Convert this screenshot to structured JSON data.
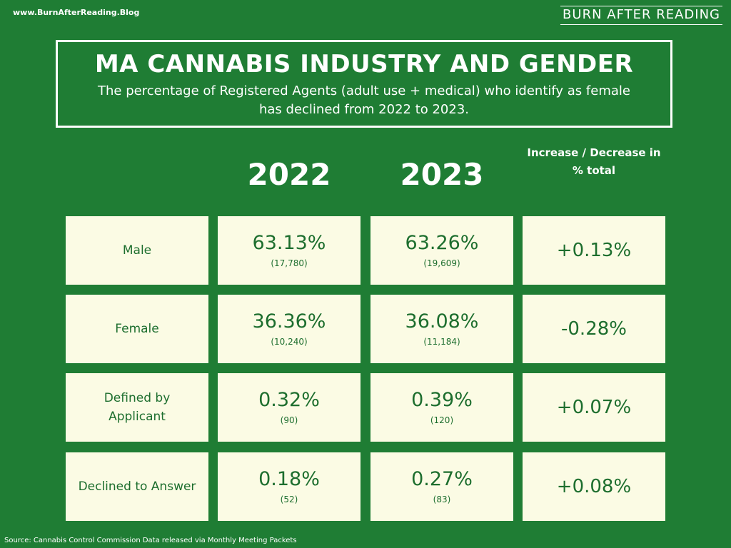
{
  "site_url": "www.BurnAfterReading.Blog",
  "brand": "BURN AFTER READING",
  "title": "MA CANNABIS INDUSTRY AND GENDER",
  "subtitle": "The percentage of Registered Agents (adult use + medical) who identify as female has declined from 2022 to 2023.",
  "columns": {
    "year1": "2022",
    "year2": "2023",
    "change": "Increase / Decrease in % total"
  },
  "rows": [
    {
      "label": "Male",
      "pct_2022": "63.13%",
      "count_2022": "(17,780)",
      "pct_2023": "63.26%",
      "count_2023": "(19,609)",
      "change": "+0.13%"
    },
    {
      "label": "Female",
      "pct_2022": "36.36%",
      "count_2022": "(10,240)",
      "pct_2023": "36.08%",
      "count_2023": "(11,184)",
      "change": "-0.28%"
    },
    {
      "label": "Defined by Applicant",
      "pct_2022": "0.32%",
      "count_2022": "(90)",
      "pct_2023": "0.39%",
      "count_2023": "(120)",
      "change": "+0.07%"
    },
    {
      "label": "Declined to Answer",
      "pct_2022": "0.18%",
      "count_2022": "(52)",
      "pct_2023": "0.27%",
      "count_2023": "(83)",
      "change": "+0.08%"
    }
  ],
  "source": "Source: Cannabis Control Commission Data released via Monthly Meeting Packets",
  "colors": {
    "background": "#1f7d34",
    "cell_background": "#fbfbe4",
    "cell_text": "#1d6e2e",
    "text": "#ffffff"
  }
}
